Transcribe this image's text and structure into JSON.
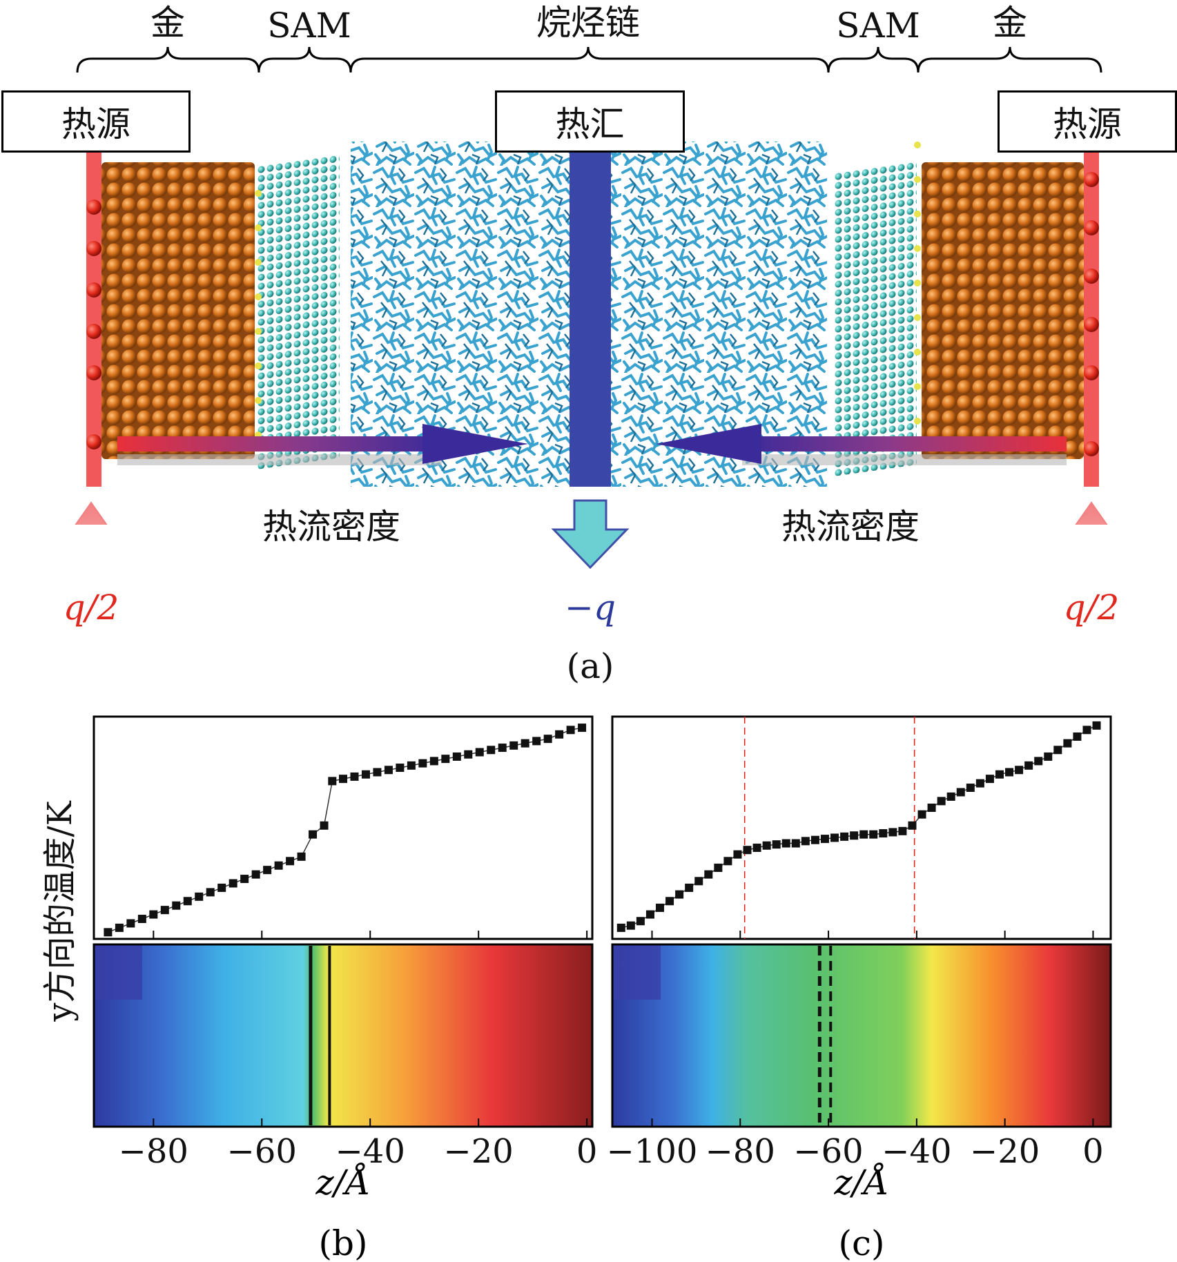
{
  "figure_a": {
    "top_labels": [
      "金",
      "SAM",
      "烷烃链",
      "SAM",
      "金"
    ],
    "boxes": {
      "source_left": "热源",
      "sink": "热汇",
      "source_right": "热源"
    },
    "flux_label_left": "热流密度",
    "flux_label_right": "热流密度",
    "q_left": "q/2",
    "q_center": "−q",
    "q_right": "q/2",
    "caption": "(a)",
    "colors": {
      "gold": "#cc6a14",
      "sam": "#3fb7b3",
      "chain": "#3aa2cf",
      "sink_bar": "#3a47a8",
      "source_bar": "#f0585a"
    }
  },
  "ylabel": "y方向的温度/K",
  "chart_data": [
    {
      "type": "scatter",
      "panel": "(b)",
      "xlabel": "z/Å",
      "ylabel": "y方向的温度/K",
      "xlim": [
        -91,
        1
      ],
      "ylim": [
        0,
        100
      ],
      "xticks": [
        -80,
        -60,
        -40,
        -20,
        0
      ],
      "xtick_labels": [
        "−80",
        "−60",
        "−40",
        "−20",
        "0"
      ],
      "y_tick_labels": "none",
      "x": [
        -88.4,
        -86.3,
        -84.2,
        -82.1,
        -80.0,
        -77.9,
        -75.8,
        -73.7,
        -71.6,
        -69.5,
        -67.4,
        -65.3,
        -63.2,
        -61.1,
        -59.0,
        -56.9,
        -54.8,
        -52.7,
        -50.6,
        -48.5,
        -47.0,
        -45.0,
        -42.9,
        -40.8,
        -38.7,
        -36.6,
        -34.5,
        -32.4,
        -30.3,
        -28.2,
        -26.1,
        -24.0,
        -21.9,
        -19.8,
        -17.7,
        -15.6,
        -13.5,
        -11.4,
        -9.3,
        -7.2,
        -5.1,
        -3.0,
        -0.9
      ],
      "y": [
        3,
        5,
        7,
        9,
        11,
        13,
        15,
        17,
        19,
        21,
        23,
        25,
        27,
        29,
        31,
        33,
        35,
        37,
        47,
        51,
        71,
        72,
        73,
        74,
        75,
        76,
        77,
        78,
        79,
        80,
        81,
        82,
        83,
        84,
        85,
        86,
        87,
        88,
        89,
        90,
        92,
        94,
        95
      ],
      "heatmap": {
        "colormap": "jet",
        "direction": "low-left to high-right",
        "interface_z": [
          -51,
          -47.5
        ]
      }
    },
    {
      "type": "scatter",
      "panel": "(c)",
      "xlabel": "z/Å",
      "ylabel": "y方向的温度/K",
      "xlim": [
        -109,
        4
      ],
      "ylim": [
        0,
        100
      ],
      "xticks": [
        -100,
        -80,
        -60,
        -40,
        -20,
        0
      ],
      "xtick_labels": [
        "−100",
        "−80",
        "−60",
        "−40",
        "−20",
        "0"
      ],
      "y_tick_labels": "none",
      "reference_lines_x": [
        -79,
        -40.5
      ],
      "x": [
        -107,
        -104.8,
        -102.6,
        -100.4,
        -98.2,
        -96.0,
        -93.8,
        -91.6,
        -89.4,
        -87.2,
        -85.0,
        -82.8,
        -80.6,
        -78.4,
        -76.2,
        -74.0,
        -71.8,
        -69.6,
        -67.4,
        -65.2,
        -63.0,
        -60.8,
        -58.6,
        -56.4,
        -54.2,
        -52.0,
        -49.8,
        -47.6,
        -45.4,
        -43.2,
        -41.0,
        -38.8,
        -36.6,
        -34.4,
        -32.2,
        -30.0,
        -27.8,
        -25.6,
        -23.4,
        -21.2,
        -19.0,
        -16.8,
        -14.6,
        -12.4,
        -10.2,
        -8.0,
        -5.8,
        -3.6,
        -1.4,
        0.8
      ],
      "y": [
        5,
        6,
        8,
        11,
        14,
        17,
        20,
        23,
        26,
        29,
        32,
        35,
        38,
        40,
        41,
        42,
        42.5,
        43,
        43,
        44,
        44.5,
        45,
        45.5,
        46,
        46.5,
        47,
        47,
        47.5,
        48,
        48.5,
        51,
        56,
        59,
        62,
        64,
        66,
        68,
        70,
        72,
        74,
        75,
        76,
        78,
        80,
        82,
        85,
        88,
        91,
        94,
        96
      ],
      "heatmap": {
        "colormap": "jet",
        "direction": "low-left to high-right",
        "interface_z": [
          -62,
          -59.5
        ]
      }
    }
  ]
}
